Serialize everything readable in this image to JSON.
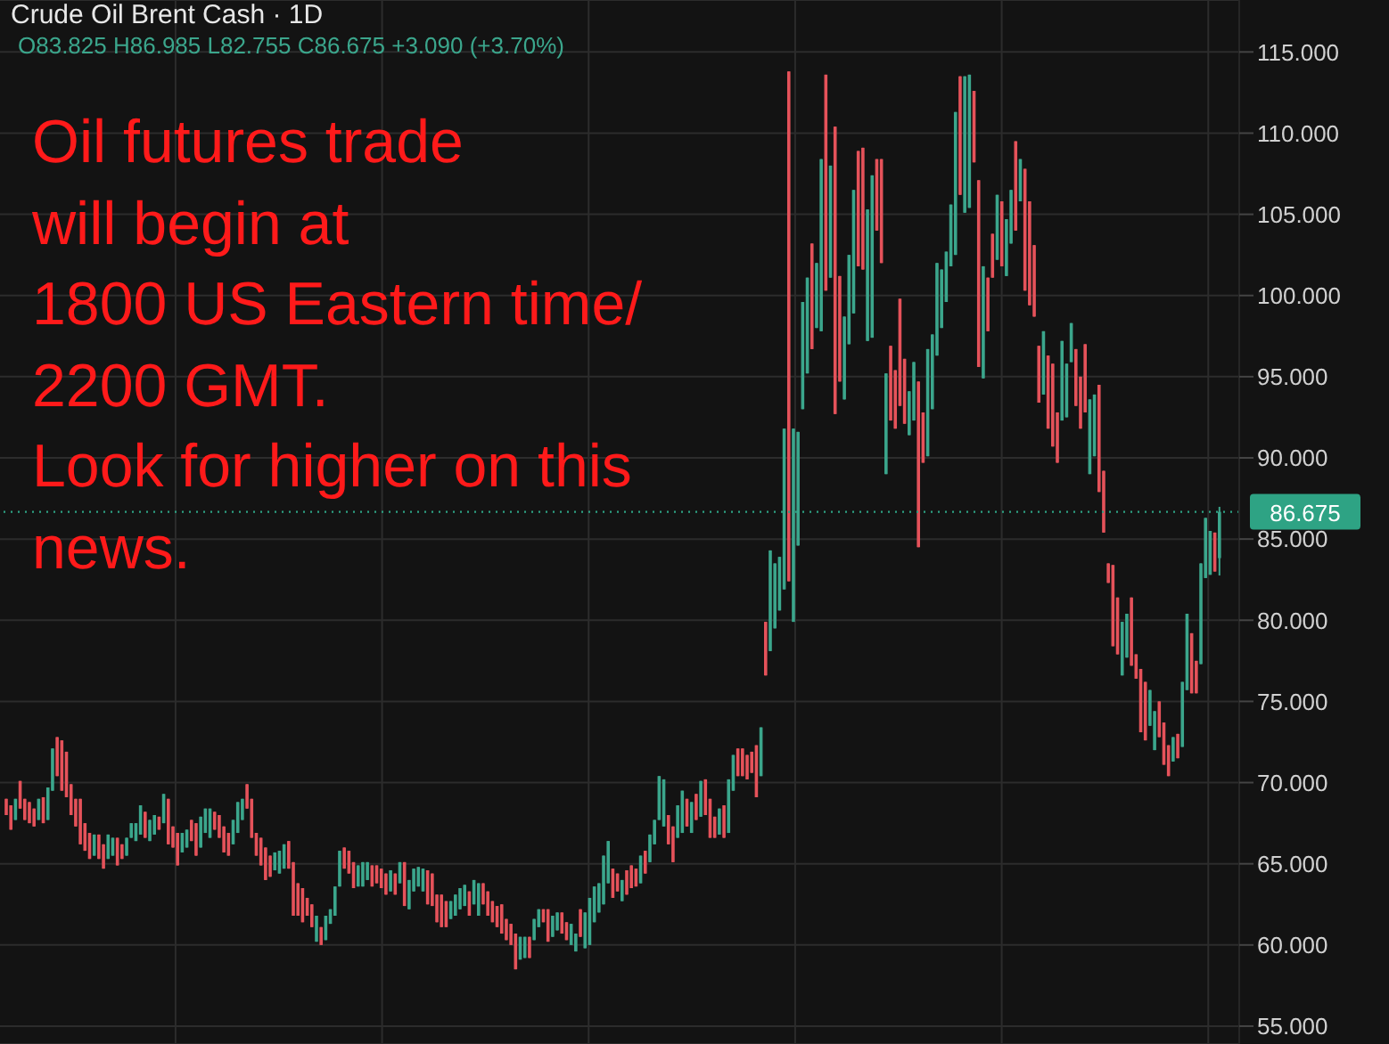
{
  "chart_data": {
    "type": "candlestick",
    "title": "Crude Oil Brent Cash · 1D",
    "subtitle": "O83.825 H86.985 L82.755 C86.675 +3.090 (+3.70%)",
    "annotations": [
      "Oil futures trade\nwill begin at\n1800 US Eastern time/\n2200 GMT.\nLook for higher on this\nnews."
    ],
    "colors": [
      "#e5525a",
      "#e5525a",
      "#3ba68c",
      "#e5525a",
      "#e5525a",
      "#e5525a",
      "#e5525a",
      "#3ba68c",
      "#e5525a",
      "#3ba68c",
      "#3ba68c",
      "#e5525a",
      "#e5525a",
      "#e5525a",
      "#e5525a",
      "#e5525a",
      "#e5525a",
      "#e5525a",
      "#e5525a",
      "#3ba68c",
      "#e5525a",
      "#e5525a",
      "#3ba68c",
      "#3ba68c",
      "#e5525a",
      "#e5525a",
      "#3ba68c",
      "#3ba68c",
      "#3ba68c",
      "#3ba68c",
      "#e5525a",
      "#3ba68c",
      "#3ba68c",
      "#e5525a",
      "#3ba68c",
      "#e5525a",
      "#e5525a",
      "#e5525a",
      "#3ba68c",
      "#3ba68c",
      "#e5525a",
      "#e5525a",
      "#3ba68c",
      "#3ba68c",
      "#3ba68c",
      "#e5525a",
      "#e5525a",
      "#e5525a",
      "#e5525a",
      "#3ba68c",
      "#3ba68c",
      "#3ba68c",
      "#e5525a",
      "#e5525a",
      "#e5525a",
      "#e5525a",
      "#e5525a",
      "#e5525a",
      "#3ba68c",
      "#3ba68c",
      "#3ba68c",
      "#e5525a",
      "#e5525a",
      "#e5525a",
      "#e5525a",
      "#e5525a",
      "#e5525a",
      "#3ba68c",
      "#e5525a",
      "#3ba68c",
      "#3ba68c",
      "#3ba68c",
      "#3ba68c",
      "#e5525a",
      "#e5525a",
      "#e5525a",
      "#3ba68c",
      "#3ba68c",
      "#3ba68c",
      "#e5525a",
      "#e5525a",
      "#e5525a",
      "#e5525a",
      "#3ba68c",
      "#e5525a",
      "#3ba68c",
      "#e5525a",
      "#3ba68c",
      "#3ba68c",
      "#3ba68c",
      "#3ba68c",
      "#e5525a",
      "#e5525a",
      "#e5525a",
      "#e5525a",
      "#e5525a",
      "#3ba68c",
      "#3ba68c",
      "#3ba68c",
      "#3ba68c",
      "#e5525a",
      "#3ba68c",
      "#3ba68c",
      "#e5525a",
      "#e5525a",
      "#e5525a",
      "#e5525a",
      "#e5525a",
      "#e5525a",
      "#e5525a",
      "#e5525a",
      "#3ba68c",
      "#3ba68c",
      "#e5525a",
      "#3ba68c",
      "#3ba68c",
      "#e5525a",
      "#e5525a",
      "#3ba68c",
      "#3ba68c",
      "#e5525a",
      "#e5525a",
      "#3ba68c",
      "#3ba68c",
      "#e5525a",
      "#3ba68c",
      "#3ba68c",
      "#3ba68c",
      "#3ba68c",
      "#3ba68c",
      "#3ba68c",
      "#e5525a",
      "#e5525a",
      "#3ba68c",
      "#e5525a",
      "#e5525a",
      "#e5525a",
      "#3ba68c",
      "#e5525a",
      "#3ba68c",
      "#3ba68c",
      "#3ba68c",
      "#3ba68c",
      "#e5525a",
      "#e5525a",
      "#3ba68c",
      "#3ba68c",
      "#e5525a",
      "#3ba68c",
      "#e5525a",
      "#3ba68c",
      "#e5525a",
      "#e5525a",
      "#e5525a",
      "#3ba68c",
      "#e5525a",
      "#3ba68c",
      "#3ba68c",
      "#e5525a",
      "#e5525a",
      "#e5525a",
      "#e5525a",
      "#e5525a",
      "#3ba68c",
      "#e5525a",
      "#3ba68c",
      "#3ba68c",
      "#3ba68c",
      "#3ba68c",
      "#e5525a",
      "#3ba68c",
      "#3ba68c",
      "#3ba68c",
      "#3ba68c",
      "#e5525a",
      "#3ba68c",
      "#3ba68c",
      "#e5525a",
      "#3ba68c",
      "#e5525a",
      "#e5525a",
      "#3ba68c",
      "#3ba68c",
      "#3ba68c",
      "#e5525a",
      "#e5525a",
      "#3ba68c",
      "#3ba68c",
      "#e5525a",
      "#e5525a",
      "#3ba68c",
      "#e5525a",
      "#e5525a",
      "#e5525a",
      "#e5525a",
      "#3ba68c",
      "#3ba68c",
      "#e5525a",
      "#e5525a",
      "#3ba68c",
      "#3ba68c",
      "#3ba68c",
      "#3ba68c",
      "#3ba68c",
      "#3ba68c",
      "#3ba68c",
      "#e5525a",
      "#3ba68c",
      "#3ba68c",
      "#e5525a",
      "#e5525a",
      "#3ba68c",
      "#e5525a",
      "#e5525a",
      "#3ba68c",
      "#e5525a",
      "#3ba68c",
      "#3ba68c",
      "#e5525a",
      "#3ba68c",
      "#e5525a",
      "#e5525a",
      "#e5525a",
      "#e5525a",
      "#3ba68c",
      "#e5525a",
      "#e5525a",
      "#e5525a",
      "#3ba68c",
      "#3ba68c",
      "#3ba68c",
      "#e5525a",
      "#e5525a",
      "#e5525a",
      "#3ba68c",
      "#3ba68c",
      "#e5525a",
      "#e5525a",
      "#e5525a",
      "#e5525a",
      "#e5525a",
      "#3ba68c",
      "#3ba68c",
      "#e5525a",
      "#e5525a",
      "#e5525a",
      "#e5525a",
      "#3ba68c",
      "#3ba68c",
      "#e5525a",
      "#e5525a",
      "#e5525a",
      "#3ba68c",
      "#e5525a",
      "#3ba68c",
      "#3ba68c",
      "#e5525a",
      "#e5525a",
      "#3ba68c",
      "#3ba68c",
      "#3ba68c",
      "#e5525a",
      "#3ba68c"
    ],
    "ylim": [
      53.9,
      118.2
    ],
    "yticks": [
      {
        "value": 55,
        "label": "55.000"
      },
      {
        "value": 60,
        "label": "60.000"
      },
      {
        "value": 65,
        "label": "65.000"
      },
      {
        "value": 70,
        "label": "70.000"
      },
      {
        "value": 75,
        "label": "75.000"
      },
      {
        "value": 80,
        "label": "80.000"
      },
      {
        "value": 85,
        "label": "85.000"
      },
      {
        "value": 90,
        "label": "90.000"
      },
      {
        "value": 95,
        "label": "95.000"
      },
      {
        "value": 100,
        "label": "100.000"
      },
      {
        "value": 105,
        "label": "105.000"
      },
      {
        "value": 110,
        "label": "110.000"
      },
      {
        "value": 115,
        "label": "115.000"
      }
    ],
    "grid": true,
    "tick_labels": "y",
    "ref_lines": [
      {
        "axis": "y",
        "value": 86.675,
        "label": "86.675",
        "color": "#2ea384",
        "line_style": "dotted"
      }
    ],
    "categories": [
      null,
      null,
      null,
      null,
      null,
      null,
      null,
      null,
      null,
      null,
      null,
      null,
      null,
      null,
      null,
      null,
      null,
      null,
      null,
      null,
      null,
      null,
      null,
      null,
      null,
      null,
      null,
      null,
      null,
      null,
      null,
      null,
      null,
      null,
      null,
      null,
      null,
      null,
      null,
      null,
      null,
      null,
      null,
      null,
      null,
      null,
      null,
      null,
      null,
      null,
      null,
      null,
      null,
      null,
      null,
      null,
      null,
      null,
      null,
      null,
      null,
      null,
      null,
      null,
      null,
      null,
      null,
      null,
      null,
      null,
      null,
      null,
      null,
      null,
      null,
      null,
      null,
      null,
      null,
      null,
      null,
      null,
      null,
      null,
      null,
      null,
      null,
      null,
      null,
      null,
      null,
      null,
      null,
      null,
      null,
      null,
      null,
      null,
      null,
      null,
      null,
      null,
      null,
      null,
      null,
      null,
      null,
      null,
      null,
      null,
      null,
      null,
      null,
      null,
      null,
      null,
      null,
      null,
      null,
      null,
      null,
      null,
      null,
      null,
      null,
      null,
      null,
      null,
      null,
      null,
      null,
      null,
      null,
      null,
      null,
      null,
      null,
      null,
      null,
      null,
      null,
      null,
      null,
      null,
      null,
      null,
      null,
      null,
      null,
      null,
      null,
      null,
      null,
      null,
      null,
      null,
      null,
      null,
      null,
      null,
      null,
      null,
      null,
      null,
      null,
      null,
      null,
      null,
      null,
      null,
      null,
      null,
      null,
      null,
      null,
      null,
      null,
      null,
      null,
      null,
      null,
      null,
      null,
      null,
      null,
      null,
      null,
      null,
      null,
      null,
      null,
      null,
      null,
      null,
      null,
      null,
      null,
      null,
      null,
      null,
      null,
      null,
      null,
      null,
      null,
      null,
      null,
      null,
      null,
      null,
      null,
      null,
      null,
      null,
      null,
      null,
      null,
      null,
      null,
      null,
      null,
      null,
      null,
      null,
      null,
      null,
      null,
      null,
      null,
      null,
      null,
      null,
      null,
      null,
      null,
      null,
      null,
      null,
      null,
      null,
      null,
      null,
      null,
      null,
      null,
      null,
      null,
      null,
      null,
      null,
      null,
      null,
      null,
      null,
      null,
      null,
      null,
      null,
      null,
      null,
      null,
      null,
      null
    ],
    "ohlc": [
      [
        69.0,
        69.0,
        68.0,
        68.0
      ],
      [
        68.6,
        68.6,
        67.1,
        67.1
      ],
      [
        67.7,
        69.0,
        67.7,
        69.0
      ],
      [
        70.1,
        70.1,
        68.4,
        68.4
      ],
      [
        69.0,
        69.0,
        67.7,
        67.7
      ],
      [
        68.8,
        68.8,
        67.5,
        67.5
      ],
      [
        68.4,
        68.4,
        67.3,
        67.3
      ],
      [
        67.7,
        69.0,
        67.7,
        69.0
      ],
      [
        69.1,
        69.1,
        67.5,
        67.5
      ],
      [
        67.7,
        69.7,
        67.7,
        69.7
      ],
      [
        69.5,
        72.1,
        69.5,
        72.1
      ],
      [
        72.8,
        72.8,
        70.4,
        70.4
      ],
      [
        72.6,
        72.6,
        69.5,
        69.5
      ],
      [
        71.9,
        71.9,
        69.1,
        69.1
      ],
      [
        69.9,
        69.9,
        68.0,
        68.0
      ],
      [
        69.0,
        69.0,
        67.3,
        67.3
      ],
      [
        69.0,
        69.0,
        66.2,
        66.2
      ],
      [
        67.5,
        67.5,
        65.8,
        65.8
      ],
      [
        66.9,
        66.9,
        65.3,
        65.3
      ],
      [
        65.5,
        66.8,
        65.5,
        66.8
      ],
      [
        66.8,
        66.8,
        65.3,
        65.3
      ],
      [
        66.2,
        66.2,
        64.7,
        64.7
      ],
      [
        65.3,
        66.8,
        65.3,
        66.8
      ],
      [
        65.5,
        66.6,
        65.5,
        66.6
      ],
      [
        66.6,
        66.6,
        64.9,
        64.9
      ],
      [
        66.2,
        66.2,
        65.3,
        65.3
      ],
      [
        65.5,
        66.6,
        65.5,
        66.6
      ],
      [
        66.6,
        67.5,
        66.6,
        67.5
      ],
      [
        66.4,
        67.5,
        66.4,
        67.5
      ],
      [
        66.8,
        68.6,
        66.8,
        68.6
      ],
      [
        68.2,
        68.2,
        66.6,
        66.6
      ],
      [
        66.4,
        67.7,
        66.4,
        67.7
      ],
      [
        66.8,
        68.0,
        66.8,
        68.0
      ],
      [
        67.9,
        67.9,
        67.1,
        67.1
      ],
      [
        67.5,
        69.3,
        67.5,
        69.3
      ],
      [
        69.0,
        69.0,
        66.2,
        66.2
      ],
      [
        67.3,
        67.3,
        66.0,
        66.0
      ],
      [
        66.9,
        66.9,
        64.9,
        64.9
      ],
      [
        65.7,
        66.9,
        65.7,
        66.9
      ],
      [
        66.0,
        67.1,
        66.0,
        67.1
      ],
      [
        67.7,
        67.7,
        66.4,
        66.4
      ],
      [
        67.5,
        67.5,
        65.5,
        65.5
      ],
      [
        66.0,
        67.9,
        66.0,
        67.9
      ],
      [
        66.9,
        68.4,
        66.9,
        68.4
      ],
      [
        66.6,
        68.4,
        66.6,
        68.4
      ],
      [
        68.2,
        68.2,
        67.1,
        67.1
      ],
      [
        68.0,
        68.0,
        66.6,
        66.6
      ],
      [
        67.3,
        67.3,
        65.7,
        65.7
      ],
      [
        66.9,
        66.9,
        65.5,
        65.5
      ],
      [
        66.2,
        67.7,
        66.2,
        67.7
      ],
      [
        66.9,
        68.8,
        66.9,
        68.8
      ],
      [
        67.7,
        69.0,
        67.7,
        69.0
      ],
      [
        69.9,
        69.9,
        68.4,
        68.4
      ],
      [
        69.0,
        69.0,
        66.6,
        66.6
      ],
      [
        66.9,
        66.9,
        65.5,
        65.5
      ],
      [
        66.6,
        66.6,
        64.9,
        64.9
      ],
      [
        66.0,
        66.0,
        64.0,
        64.0
      ],
      [
        65.5,
        65.5,
        64.2,
        64.2
      ],
      [
        64.6,
        65.7,
        64.6,
        65.7
      ],
      [
        64.4,
        65.8,
        64.4,
        65.8
      ],
      [
        64.7,
        66.2,
        64.7,
        66.2
      ],
      [
        66.4,
        66.4,
        64.7,
        64.7
      ],
      [
        65.1,
        65.1,
        61.8,
        61.8
      ],
      [
        63.8,
        63.8,
        61.8,
        61.8
      ],
      [
        63.5,
        63.5,
        61.4,
        61.4
      ],
      [
        62.9,
        62.9,
        61.8,
        61.8
      ],
      [
        62.5,
        62.5,
        61.1,
        61.1
      ],
      [
        60.2,
        61.8,
        60.2,
        61.8
      ],
      [
        61.1,
        61.1,
        60.0,
        60.0
      ],
      [
        60.3,
        61.8,
        60.3,
        61.8
      ],
      [
        61.3,
        62.2,
        61.3,
        62.2
      ],
      [
        61.8,
        63.6,
        61.8,
        63.6
      ],
      [
        63.6,
        65.8,
        63.6,
        65.8
      ],
      [
        66.0,
        66.0,
        64.7,
        64.7
      ],
      [
        65.8,
        65.8,
        64.4,
        64.4
      ],
      [
        65.1,
        65.1,
        63.5,
        63.5
      ],
      [
        63.6,
        64.9,
        63.6,
        64.9
      ],
      [
        63.6,
        65.1,
        63.6,
        65.1
      ],
      [
        64.0,
        65.1,
        64.0,
        65.1
      ],
      [
        64.9,
        64.9,
        63.6,
        63.6
      ],
      [
        64.9,
        64.9,
        63.8,
        63.8
      ],
      [
        64.7,
        64.7,
        63.5,
        63.5
      ],
      [
        64.4,
        64.4,
        63.1,
        63.1
      ],
      [
        63.3,
        64.6,
        63.3,
        64.6
      ],
      [
        64.4,
        64.4,
        63.1,
        63.1
      ],
      [
        63.8,
        65.1,
        63.8,
        65.1
      ],
      [
        65.1,
        65.1,
        62.4,
        62.4
      ],
      [
        62.2,
        64.0,
        62.2,
        64.0
      ],
      [
        63.3,
        64.7,
        63.3,
        64.7
      ],
      [
        63.6,
        64.8,
        63.6,
        64.8
      ],
      [
        63.3,
        64.7,
        63.3,
        64.7
      ],
      [
        64.6,
        64.6,
        62.5,
        62.5
      ],
      [
        64.4,
        64.4,
        62.4,
        62.4
      ],
      [
        63.1,
        63.1,
        61.4,
        61.4
      ],
      [
        63.1,
        63.1,
        61.1,
        61.1
      ],
      [
        62.7,
        62.7,
        61.1,
        61.1
      ],
      [
        61.6,
        62.7,
        61.6,
        62.7
      ],
      [
        61.8,
        63.1,
        61.8,
        63.1
      ],
      [
        62.2,
        63.5,
        62.2,
        63.5
      ],
      [
        62.4,
        63.7,
        62.4,
        63.7
      ],
      [
        63.3,
        63.3,
        61.8,
        61.8
      ],
      [
        62.5,
        64.0,
        62.5,
        64.0
      ],
      [
        61.8,
        63.8,
        61.8,
        63.8
      ],
      [
        63.8,
        63.8,
        62.5,
        62.5
      ],
      [
        63.3,
        63.3,
        61.8,
        61.8
      ],
      [
        62.7,
        62.7,
        61.4,
        61.4
      ],
      [
        62.4,
        62.4,
        61.1,
        61.1
      ],
      [
        62.5,
        62.5,
        60.7,
        60.7
      ],
      [
        61.6,
        61.6,
        60.3,
        60.3
      ],
      [
        61.3,
        61.3,
        60.0,
        60.0
      ],
      [
        60.7,
        60.7,
        58.5,
        58.5
      ],
      [
        59.1,
        60.5,
        59.1,
        60.5
      ],
      [
        59.2,
        60.5,
        59.2,
        60.5
      ],
      [
        60.5,
        60.5,
        59.2,
        59.2
      ],
      [
        60.3,
        61.6,
        60.3,
        61.6
      ],
      [
        61.1,
        62.2,
        61.1,
        62.2
      ],
      [
        62.2,
        62.2,
        61.4,
        61.4
      ],
      [
        62.2,
        62.2,
        60.2,
        60.2
      ],
      [
        60.5,
        61.8,
        60.5,
        61.8
      ],
      [
        60.9,
        62.0,
        60.9,
        62.0
      ],
      [
        62.0,
        62.0,
        60.7,
        60.7
      ],
      [
        61.4,
        61.4,
        60.3,
        60.3
      ],
      [
        60.0,
        61.3,
        60.0,
        61.3
      ],
      [
        59.6,
        60.7,
        59.6,
        60.7
      ],
      [
        62.2,
        62.2,
        60.5,
        60.5
      ],
      [
        59.8,
        62.0,
        59.8,
        62.0
      ],
      [
        60.0,
        62.9,
        60.0,
        62.9
      ],
      [
        61.4,
        63.6,
        61.4,
        63.6
      ],
      [
        62.0,
        63.8,
        62.0,
        63.8
      ],
      [
        62.5,
        65.5,
        62.5,
        65.5
      ],
      [
        63.8,
        66.4,
        63.8,
        66.4
      ],
      [
        64.7,
        64.7,
        62.9,
        62.9
      ],
      [
        64.4,
        64.4,
        63.3,
        63.3
      ],
      [
        62.7,
        64.0,
        62.7,
        64.0
      ],
      [
        64.6,
        64.6,
        63.1,
        63.1
      ],
      [
        64.9,
        64.9,
        63.5,
        63.5
      ],
      [
        64.7,
        64.7,
        63.6,
        63.6
      ],
      [
        63.8,
        65.5,
        63.8,
        65.5
      ],
      [
        65.8,
        65.8,
        64.4,
        64.4
      ],
      [
        65.1,
        66.8,
        65.1,
        66.8
      ],
      [
        66.2,
        67.7,
        66.2,
        67.7
      ],
      [
        67.7,
        70.4,
        67.7,
        70.4
      ],
      [
        67.3,
        70.2,
        67.3,
        70.2
      ],
      [
        68.0,
        68.0,
        66.2,
        66.2
      ],
      [
        67.3,
        67.3,
        65.1,
        65.1
      ],
      [
        66.6,
        68.6,
        66.6,
        68.6
      ],
      [
        66.9,
        69.5,
        66.9,
        69.5
      ],
      [
        69.0,
        69.0,
        67.3,
        67.3
      ],
      [
        66.9,
        68.8,
        66.9,
        68.8
      ],
      [
        69.3,
        69.3,
        67.7,
        67.7
      ],
      [
        67.9,
        70.1,
        67.9,
        70.1
      ],
      [
        70.2,
        70.2,
        68.0,
        68.0
      ],
      [
        69.0,
        69.0,
        66.6,
        66.6
      ],
      [
        67.9,
        67.9,
        66.6,
        66.6
      ],
      [
        66.8,
        68.4,
        66.8,
        68.4
      ],
      [
        68.6,
        68.6,
        66.6,
        66.6
      ],
      [
        66.9,
        70.2,
        66.9,
        70.2
      ],
      [
        69.5,
        71.7,
        69.5,
        71.7
      ],
      [
        72.1,
        72.1,
        70.4,
        70.4
      ],
      [
        72.1,
        72.1,
        70.4,
        70.4
      ],
      [
        71.7,
        71.7,
        70.2,
        70.2
      ],
      [
        71.9,
        71.9,
        70.6,
        70.6
      ],
      [
        72.3,
        72.3,
        69.1,
        69.1
      ],
      [
        70.4,
        73.4,
        70.4,
        73.4
      ],
      [
        79.9,
        79.9,
        76.6,
        76.6
      ],
      [
        78.1,
        84.3,
        78.1,
        84.3
      ],
      [
        79.5,
        83.5,
        79.5,
        83.5
      ],
      [
        80.6,
        83.9,
        80.6,
        83.9
      ],
      [
        81.9,
        91.8,
        81.9,
        91.8
      ],
      [
        113.8,
        113.8,
        82.4,
        82.4
      ],
      [
        79.9,
        91.8,
        79.9,
        91.8
      ],
      [
        84.6,
        91.6,
        84.6,
        91.6
      ],
      [
        93.0,
        99.6,
        93.0,
        99.6
      ],
      [
        95.2,
        101.1,
        95.2,
        101.1
      ],
      [
        103.2,
        103.2,
        96.7,
        96.7
      ],
      [
        98.0,
        102.0,
        98.0,
        102.0
      ],
      [
        97.8,
        108.4,
        97.8,
        108.4
      ],
      [
        113.6,
        113.6,
        100.3,
        100.3
      ],
      [
        101.1,
        108.0,
        101.1,
        108.0
      ],
      [
        110.4,
        110.4,
        92.7,
        92.7
      ],
      [
        101.2,
        101.2,
        94.7,
        94.7
      ],
      [
        93.6,
        98.7,
        93.6,
        98.7
      ],
      [
        97.0,
        102.5,
        97.0,
        102.5
      ],
      [
        98.9,
        106.5,
        98.9,
        106.5
      ],
      [
        108.9,
        108.9,
        101.8,
        101.8
      ],
      [
        109.1,
        109.1,
        101.6,
        101.6
      ],
      [
        97.2,
        105.3,
        97.2,
        105.3
      ],
      [
        97.4,
        107.4,
        97.4,
        107.4
      ],
      [
        108.4,
        108.4,
        104.0,
        104.0
      ],
      [
        108.4,
        108.4,
        102.0,
        102.0
      ],
      [
        89.0,
        95.2,
        89.0,
        95.2
      ],
      [
        96.9,
        96.9,
        92.3,
        92.3
      ],
      [
        95.4,
        95.4,
        91.8,
        91.8
      ],
      [
        99.8,
        99.8,
        93.2,
        93.2
      ],
      [
        96.1,
        96.1,
        92.1,
        92.1
      ],
      [
        91.4,
        94.1,
        91.4,
        94.1
      ],
      [
        92.3,
        95.9,
        92.3,
        95.9
      ],
      [
        94.7,
        94.7,
        84.5,
        84.5
      ],
      [
        92.8,
        92.8,
        89.7,
        89.7
      ],
      [
        90.1,
        96.7,
        90.1,
        96.7
      ],
      [
        93.0,
        97.6,
        93.0,
        97.6
      ],
      [
        96.3,
        102.0,
        96.3,
        102.0
      ],
      [
        98.0,
        101.6,
        98.0,
        101.6
      ],
      [
        99.6,
        102.7,
        99.6,
        102.7
      ],
      [
        101.8,
        105.6,
        101.8,
        105.6
      ],
      [
        102.5,
        111.3,
        102.5,
        111.3
      ],
      [
        113.5,
        113.5,
        106.2,
        106.2
      ],
      [
        105.1,
        113.5,
        105.1,
        113.5
      ],
      [
        105.4,
        113.6,
        105.4,
        113.6
      ],
      [
        112.6,
        112.6,
        108.2,
        108.2
      ],
      [
        107.1,
        107.1,
        95.6,
        95.6
      ],
      [
        94.9,
        101.8,
        94.9,
        101.8
      ],
      [
        101.1,
        101.1,
        97.8,
        97.8
      ],
      [
        103.8,
        103.8,
        101.1,
        101.1
      ],
      [
        102.2,
        106.2,
        102.2,
        106.2
      ],
      [
        105.8,
        105.8,
        101.8,
        101.8
      ],
      [
        101.2,
        104.7,
        101.2,
        104.7
      ],
      [
        103.2,
        106.5,
        103.2,
        106.5
      ],
      [
        109.5,
        109.5,
        104.0,
        104.0
      ],
      [
        105.8,
        108.4,
        105.8,
        108.4
      ],
      [
        107.8,
        107.8,
        100.3,
        100.3
      ],
      [
        105.8,
        105.8,
        99.4,
        99.4
      ],
      [
        103.1,
        103.1,
        98.7,
        98.7
      ],
      [
        96.9,
        96.9,
        93.4,
        93.4
      ],
      [
        93.9,
        97.8,
        93.9,
        97.8
      ],
      [
        96.3,
        96.3,
        91.8,
        91.8
      ],
      [
        95.8,
        95.8,
        90.7,
        90.7
      ],
      [
        92.8,
        92.8,
        89.7,
        89.7
      ],
      [
        92.3,
        97.2,
        92.3,
        97.2
      ],
      [
        92.5,
        95.8,
        92.5,
        95.8
      ],
      [
        95.9,
        98.3,
        95.9,
        98.3
      ],
      [
        96.7,
        96.7,
        93.2,
        93.2
      ],
      [
        95.0,
        95.0,
        91.8,
        91.8
      ],
      [
        97.0,
        97.0,
        92.8,
        92.8
      ],
      [
        89.0,
        93.6,
        89.0,
        93.6
      ],
      [
        90.1,
        93.9,
        90.1,
        93.9
      ],
      [
        94.5,
        94.5,
        87.9,
        87.9
      ],
      [
        89.2,
        89.2,
        85.4,
        85.4
      ],
      [
        83.5,
        83.5,
        82.3,
        82.3
      ],
      [
        83.4,
        83.4,
        78.4,
        78.4
      ],
      [
        81.4,
        81.4,
        77.9,
        77.9
      ],
      [
        76.6,
        79.9,
        76.6,
        79.9
      ],
      [
        77.7,
        80.4,
        77.7,
        80.4
      ],
      [
        81.4,
        81.4,
        77.2,
        77.2
      ],
      [
        77.9,
        77.9,
        76.4,
        76.4
      ],
      [
        77.0,
        77.0,
        73.1,
        73.1
      ],
      [
        76.2,
        76.2,
        72.6,
        72.6
      ],
      [
        73.5,
        75.7,
        73.5,
        75.7
      ],
      [
        72.0,
        74.4,
        72.0,
        74.4
      ],
      [
        75.0,
        75.0,
        72.8,
        72.8
      ],
      [
        73.7,
        73.7,
        71.1,
        71.1
      ],
      [
        72.3,
        72.3,
        70.4,
        70.4
      ],
      [
        71.3,
        72.8,
        71.3,
        72.8
      ],
      [
        73.0,
        73.0,
        71.5,
        71.5
      ],
      [
        72.2,
        76.2,
        72.2,
        76.2
      ],
      [
        75.7,
        80.4,
        75.7,
        80.4
      ],
      [
        79.2,
        79.2,
        75.5,
        75.5
      ],
      [
        77.5,
        77.5,
        75.5,
        75.5
      ],
      [
        77.3,
        83.5,
        77.3,
        83.5
      ],
      [
        82.6,
        86.3,
        82.6,
        86.3
      ],
      [
        82.8,
        85.5,
        82.8,
        85.5
      ],
      [
        85.4,
        85.4,
        83.0,
        83.0
      ],
      [
        83.825,
        86.985,
        82.755,
        86.675
      ]
    ]
  }
}
